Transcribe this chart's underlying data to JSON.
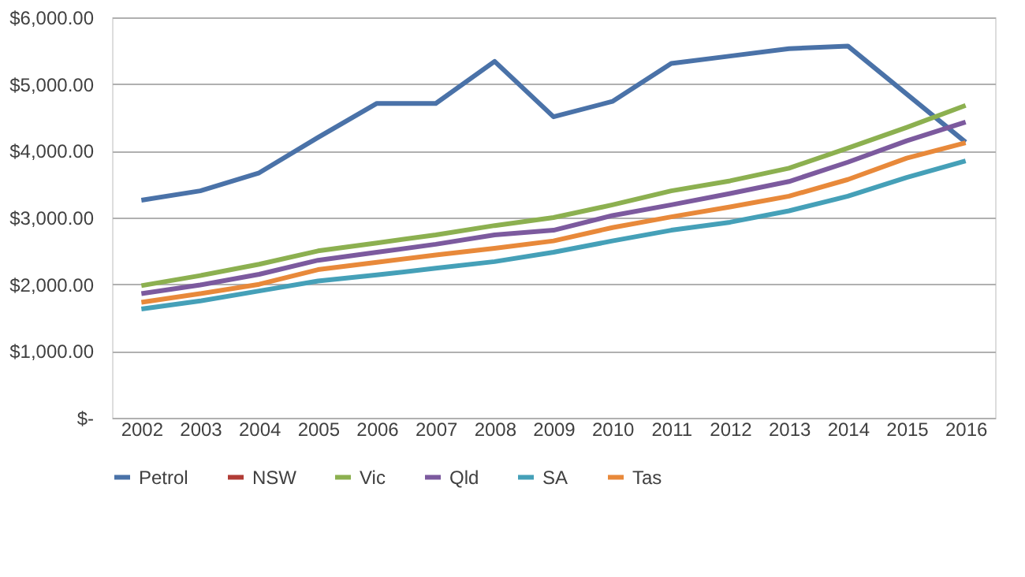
{
  "chart_data": {
    "type": "line",
    "categories": [
      "2002",
      "2003",
      "2004",
      "2005",
      "2006",
      "2007",
      "2008",
      "2009",
      "2010",
      "2011",
      "2012",
      "2013",
      "2014",
      "2015",
      "2016"
    ],
    "series": [
      {
        "name": "Petrol",
        "color": "#4a72a8",
        "values": [
          3260,
          3400,
          3670,
          4200,
          4710,
          4710,
          5340,
          4510,
          4740,
          5310,
          5420,
          5530,
          5570,
          4850,
          4130
        ]
      },
      {
        "name": "NSW",
        "color": "#b13c36",
        "values": [
          null,
          null,
          null,
          null,
          null,
          null,
          null,
          null,
          null,
          null,
          null,
          null,
          null,
          null,
          null
        ]
      },
      {
        "name": "Vic",
        "color": "#8cb050",
        "values": [
          1980,
          2130,
          2300,
          2500,
          2620,
          2740,
          2880,
          3000,
          3190,
          3400,
          3550,
          3740,
          4040,
          4350,
          4680
        ]
      },
      {
        "name": "Qld",
        "color": "#7c5a9e",
        "values": [
          1860,
          1990,
          2150,
          2360,
          2480,
          2600,
          2740,
          2810,
          3030,
          3190,
          3360,
          3540,
          3830,
          4150,
          4430
        ]
      },
      {
        "name": "SA",
        "color": "#45a0b8",
        "values": [
          1630,
          1750,
          1900,
          2050,
          2140,
          2240,
          2340,
          2480,
          2650,
          2810,
          2930,
          3100,
          3320,
          3600,
          3850
        ]
      },
      {
        "name": "Tas",
        "color": "#e8893a",
        "values": [
          1730,
          1860,
          2000,
          2220,
          2330,
          2440,
          2540,
          2650,
          2850,
          3010,
          3160,
          3320,
          3570,
          3890,
          4120
        ]
      }
    ],
    "ylim": [
      0,
      6000
    ],
    "yticks": [
      {
        "value": 0,
        "label": "$-"
      },
      {
        "value": 1000,
        "label": "$1,000.00"
      },
      {
        "value": 2000,
        "label": "$2,000.00"
      },
      {
        "value": 3000,
        "label": "$3,000.00"
      },
      {
        "value": 4000,
        "label": "$4,000.00"
      },
      {
        "value": 5000,
        "label": "$5,000.00"
      },
      {
        "value": 6000,
        "label": "$6,000.00"
      }
    ],
    "grid": "y",
    "legend": "bottom",
    "marker": "none",
    "line_style": "solid"
  }
}
